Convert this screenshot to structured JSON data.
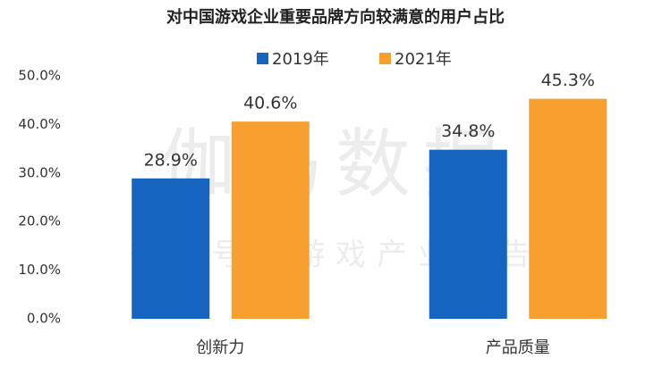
{
  "chart_data": {
    "type": "bar",
    "title": "对中国游戏企业重要品牌方向较满意的用户占比",
    "watermark": [
      "伽马数据",
      "微信号：游戏产业报告"
    ],
    "categories": [
      "创新力",
      "产品质量"
    ],
    "series": [
      {
        "name": "2019年",
        "color": "#1565c0",
        "values": [
          28.9,
          34.8
        ],
        "value_labels": [
          "28.9%",
          "34.8%"
        ]
      },
      {
        "name": "2021年",
        "color": "#f7a030",
        "values": [
          40.6,
          45.3
        ],
        "value_labels": [
          "40.6%",
          "45.3%"
        ]
      }
    ],
    "ylim": [
      0,
      50
    ],
    "yticks": [
      {
        "value": 0,
        "label": "0.0%"
      },
      {
        "value": 10,
        "label": "10.0%"
      },
      {
        "value": 20,
        "label": "20.0%"
      },
      {
        "value": 30,
        "label": "30.0%"
      },
      {
        "value": 40,
        "label": "40.0%"
      },
      {
        "value": 50,
        "label": "50.0%"
      }
    ],
    "grid": false,
    "legend": "top"
  }
}
